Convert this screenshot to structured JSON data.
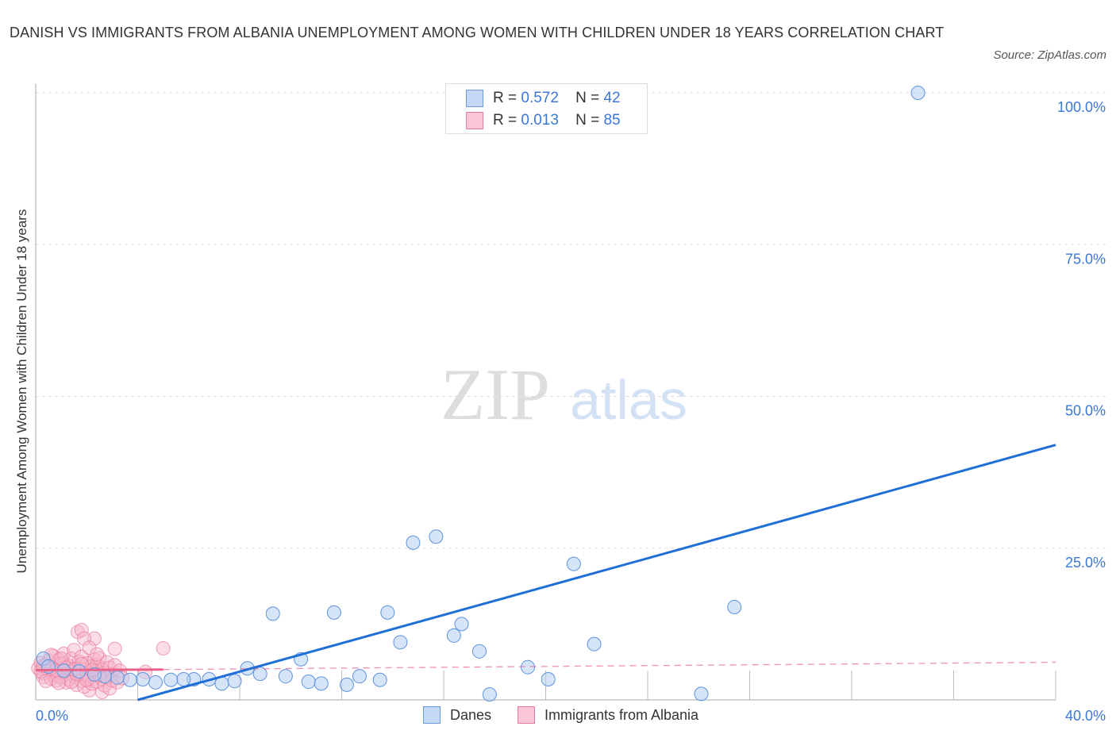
{
  "chart_data": {
    "type": "scatter",
    "title": "DANISH VS IMMIGRANTS FROM ALBANIA UNEMPLOYMENT AMONG WOMEN WITH CHILDREN UNDER 18 YEARS CORRELATION CHART",
    "source": "Source: ZipAtlas.com",
    "xlabel": "",
    "ylabel": "Unemployment Among Women with Children Under 18 years",
    "xlim": [
      0,
      40
    ],
    "ylim": [
      0,
      100
    ],
    "x_tick_labels": [
      "0.0%",
      "40.0%"
    ],
    "y_tick_labels": [
      "100.0%",
      "75.0%",
      "50.0%",
      "25.0%"
    ],
    "y_ticks": [
      100,
      75,
      50,
      25
    ],
    "grid": true,
    "colors": {
      "danes": "#6a9be0",
      "albania": "#e87a9c",
      "danes_line": "#1f6fd6",
      "albania_line": "#e8628a",
      "accent": "#3b77d8"
    },
    "legend": {
      "placement": "top-center",
      "rows": [
        {
          "r_label": "R =",
          "r": "0.572",
          "n_label": "N =",
          "n": "42"
        },
        {
          "r_label": "R =",
          "r": "0.013",
          "n_label": "N =",
          "n": "85"
        }
      ]
    },
    "series": [
      {
        "name": "Danes",
        "trend": [
          [
            4.0,
            0
          ],
          [
            40,
            42.0
          ]
        ],
        "points": [
          [
            34.6,
            100
          ],
          [
            15.7,
            26.9
          ],
          [
            14.8,
            25.9
          ],
          [
            21.1,
            22.4
          ],
          [
            27.4,
            15.3
          ],
          [
            9.3,
            14.2
          ],
          [
            11.7,
            14.4
          ],
          [
            13.8,
            14.4
          ],
          [
            16.7,
            12.5
          ],
          [
            16.4,
            10.6
          ],
          [
            14.3,
            9.5
          ],
          [
            21.9,
            9.2
          ],
          [
            17.4,
            8.0
          ],
          [
            10.4,
            6.7
          ],
          [
            8.3,
            5.2
          ],
          [
            19.3,
            5.4
          ],
          [
            8.8,
            4.3
          ],
          [
            9.8,
            3.9
          ],
          [
            12.7,
            3.9
          ],
          [
            10.7,
            3.0
          ],
          [
            11.2,
            2.7
          ],
          [
            12.2,
            2.5
          ],
          [
            13.5,
            3.3
          ],
          [
            20.1,
            3.4
          ],
          [
            17.8,
            0.9
          ],
          [
            26.1,
            1.0
          ],
          [
            7.8,
            3.1
          ],
          [
            7.3,
            2.7
          ],
          [
            6.8,
            3.4
          ],
          [
            6.2,
            3.4
          ],
          [
            5.8,
            3.4
          ],
          [
            5.3,
            3.3
          ],
          [
            4.7,
            2.9
          ],
          [
            4.2,
            3.4
          ],
          [
            3.7,
            3.3
          ],
          [
            3.2,
            3.7
          ],
          [
            2.7,
            3.9
          ],
          [
            0.3,
            6.8
          ],
          [
            0.5,
            5.5
          ],
          [
            1.7,
            4.7
          ],
          [
            2.3,
            4.2
          ],
          [
            1.1,
            4.8
          ]
        ]
      },
      {
        "name": "Immigrants from Albania",
        "trend": [
          [
            0,
            4.9
          ],
          [
            5.0,
            5.0
          ],
          [
            40,
            6.2
          ]
        ],
        "points": [
          [
            1.65,
            11.2
          ],
          [
            1.8,
            11.5
          ],
          [
            2.3,
            10.1
          ],
          [
            1.9,
            10.1
          ],
          [
            3.1,
            8.4
          ],
          [
            5.0,
            8.5
          ],
          [
            4.3,
            4.6
          ],
          [
            2.1,
            1.6
          ],
          [
            2.6,
            1.3
          ],
          [
            0.1,
            5.2
          ],
          [
            0.2,
            6.1
          ],
          [
            0.3,
            4.4
          ],
          [
            0.3,
            3.8
          ],
          [
            0.4,
            5.8
          ],
          [
            0.5,
            6.5
          ],
          [
            0.5,
            4.9
          ],
          [
            0.6,
            3.5
          ],
          [
            0.6,
            5.4
          ],
          [
            0.7,
            7.2
          ],
          [
            0.7,
            4.1
          ],
          [
            0.8,
            5.9
          ],
          [
            0.8,
            3.2
          ],
          [
            0.9,
            6.6
          ],
          [
            0.9,
            4.6
          ],
          [
            1.0,
            5.1
          ],
          [
            1.0,
            3.7
          ],
          [
            1.1,
            7.6
          ],
          [
            1.1,
            6.0
          ],
          [
            1.2,
            4.3
          ],
          [
            1.2,
            2.9
          ],
          [
            1.3,
            5.6
          ],
          [
            1.3,
            3.4
          ],
          [
            1.4,
            6.8
          ],
          [
            1.4,
            4.8
          ],
          [
            1.5,
            8.2
          ],
          [
            1.5,
            3.9
          ],
          [
            1.6,
            5.3
          ],
          [
            1.6,
            2.5
          ],
          [
            1.7,
            6.3
          ],
          [
            1.7,
            4.4
          ],
          [
            1.8,
            7.1
          ],
          [
            1.8,
            3.1
          ],
          [
            1.9,
            5.0
          ],
          [
            1.9,
            2.2
          ],
          [
            2.0,
            6.0
          ],
          [
            2.0,
            4.1
          ],
          [
            2.1,
            8.6
          ],
          [
            2.1,
            3.5
          ],
          [
            2.2,
            5.5
          ],
          [
            2.2,
            2.7
          ],
          [
            2.3,
            6.6
          ],
          [
            2.3,
            4.6
          ],
          [
            2.4,
            3.0
          ],
          [
            2.4,
            5.8
          ],
          [
            2.5,
            4.0
          ],
          [
            2.5,
            6.9
          ],
          [
            2.6,
            3.4
          ],
          [
            2.6,
            5.1
          ],
          [
            2.7,
            2.4
          ],
          [
            2.7,
            4.5
          ],
          [
            2.8,
            6.2
          ],
          [
            2.8,
            3.7
          ],
          [
            2.9,
            5.3
          ],
          [
            2.9,
            1.9
          ],
          [
            3.0,
            4.2
          ],
          [
            3.0,
            3.2
          ],
          [
            3.1,
            5.7
          ],
          [
            3.2,
            2.9
          ],
          [
            3.3,
            4.8
          ],
          [
            3.4,
            3.6
          ],
          [
            0.2,
            4.7
          ],
          [
            0.4,
            3.1
          ],
          [
            0.6,
            7.4
          ],
          [
            0.8,
            4.9
          ],
          [
            1.0,
            6.8
          ],
          [
            1.2,
            5.3
          ],
          [
            1.4,
            3.0
          ],
          [
            1.6,
            4.3
          ],
          [
            1.8,
            5.9
          ],
          [
            2.0,
            3.3
          ],
          [
            2.2,
            4.9
          ],
          [
            2.4,
            7.5
          ],
          [
            0.3,
            5.6
          ],
          [
            0.9,
            2.8
          ],
          [
            1.5,
            5.0
          ]
        ]
      }
    ]
  },
  "bottom_legend": [
    "Danes",
    "Immigrants from Albania"
  ],
  "watermark": "ZIPatlas"
}
